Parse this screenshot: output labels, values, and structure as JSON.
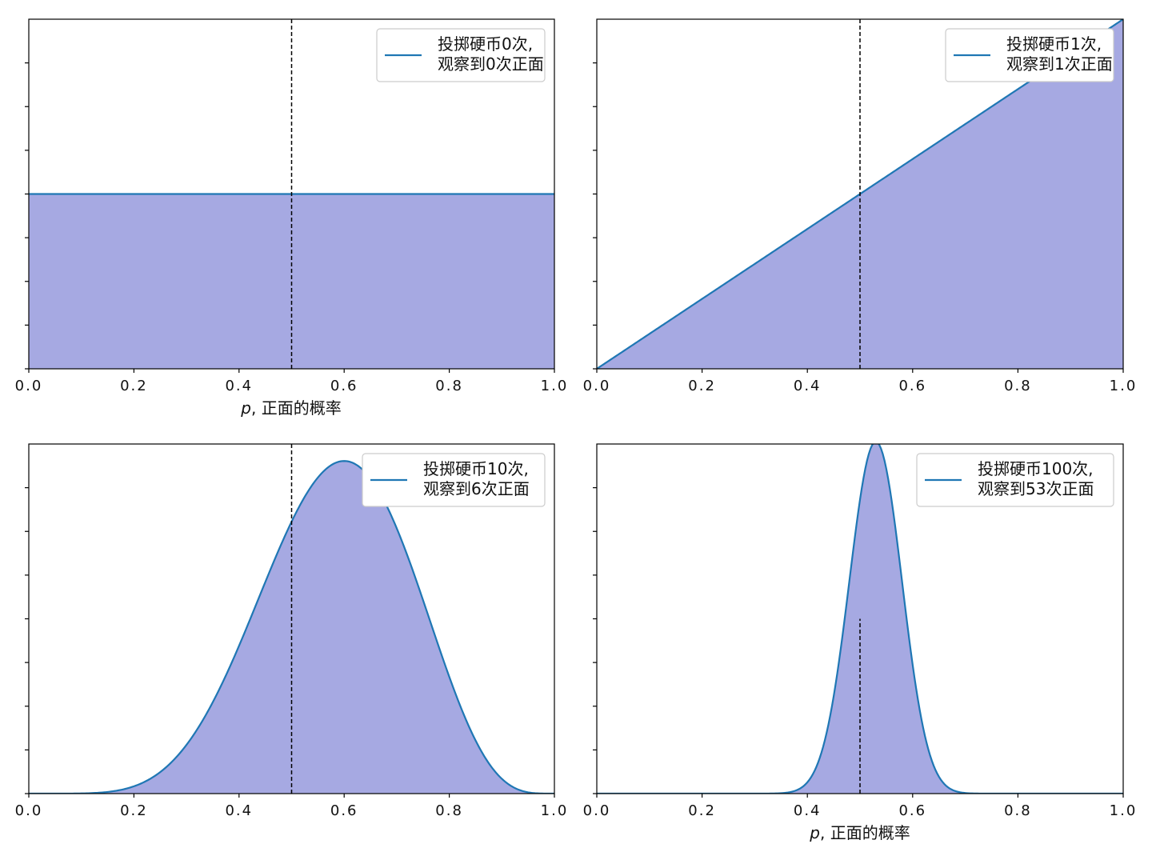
{
  "colors": {
    "line": "#1f77b4",
    "fill": "#a6a9e2",
    "vline": "#000000",
    "axes": "#000000",
    "legend_border": "#cccccc"
  },
  "chart_data": [
    {
      "type": "area",
      "xlabel": "",
      "xlim": [
        0,
        1
      ],
      "xticks": [
        "0.0",
        "0.2",
        "0.4",
        "0.6",
        "0.8",
        "1.0"
      ],
      "y_tick_count": 8,
      "vline_x": 0.5,
      "legend_position": "top-right",
      "series": [
        {
          "name": [
            "投掷硬币0次,",
            "观察到0次正面"
          ],
          "trials": 0,
          "heads": 0
        }
      ]
    },
    {
      "type": "area",
      "xlabel": "",
      "xlim": [
        0,
        1
      ],
      "xticks": [
        "0.0",
        "0.2",
        "0.4",
        "0.6",
        "0.8",
        "1.0"
      ],
      "y_tick_count": 8,
      "vline_x": 0.5,
      "legend_position": "top-right",
      "series": [
        {
          "name": [
            "投掷硬币1次,",
            "观察到1次正面"
          ],
          "trials": 1,
          "heads": 1
        }
      ]
    },
    {
      "type": "area",
      "xlabel": "",
      "xlim": [
        0,
        1
      ],
      "xticks": [
        "0.0",
        "0.2",
        "0.4",
        "0.6",
        "0.8",
        "1.0"
      ],
      "y_tick_count": 8,
      "vline_x": 0.5,
      "legend_position": "top-right",
      "series": [
        {
          "name": [
            "投掷硬币10次,",
            "观察到6次正面"
          ],
          "trials": 10,
          "heads": 6
        }
      ]
    },
    {
      "type": "area",
      "xlabel": "",
      "xlim": [
        0,
        1
      ],
      "xticks": [
        "0.0",
        "0.2",
        "0.4",
        "0.6",
        "0.8",
        "1.0"
      ],
      "y_tick_count": 8,
      "vline_x": 0.5,
      "legend_position": "top-right",
      "series": [
        {
          "name": [
            "投掷硬币100次,",
            "观察到53次正面"
          ],
          "trials": 100,
          "heads": 53
        }
      ]
    }
  ],
  "xlabel_italic": "p",
  "xlabel_text": ", 正面的概率"
}
